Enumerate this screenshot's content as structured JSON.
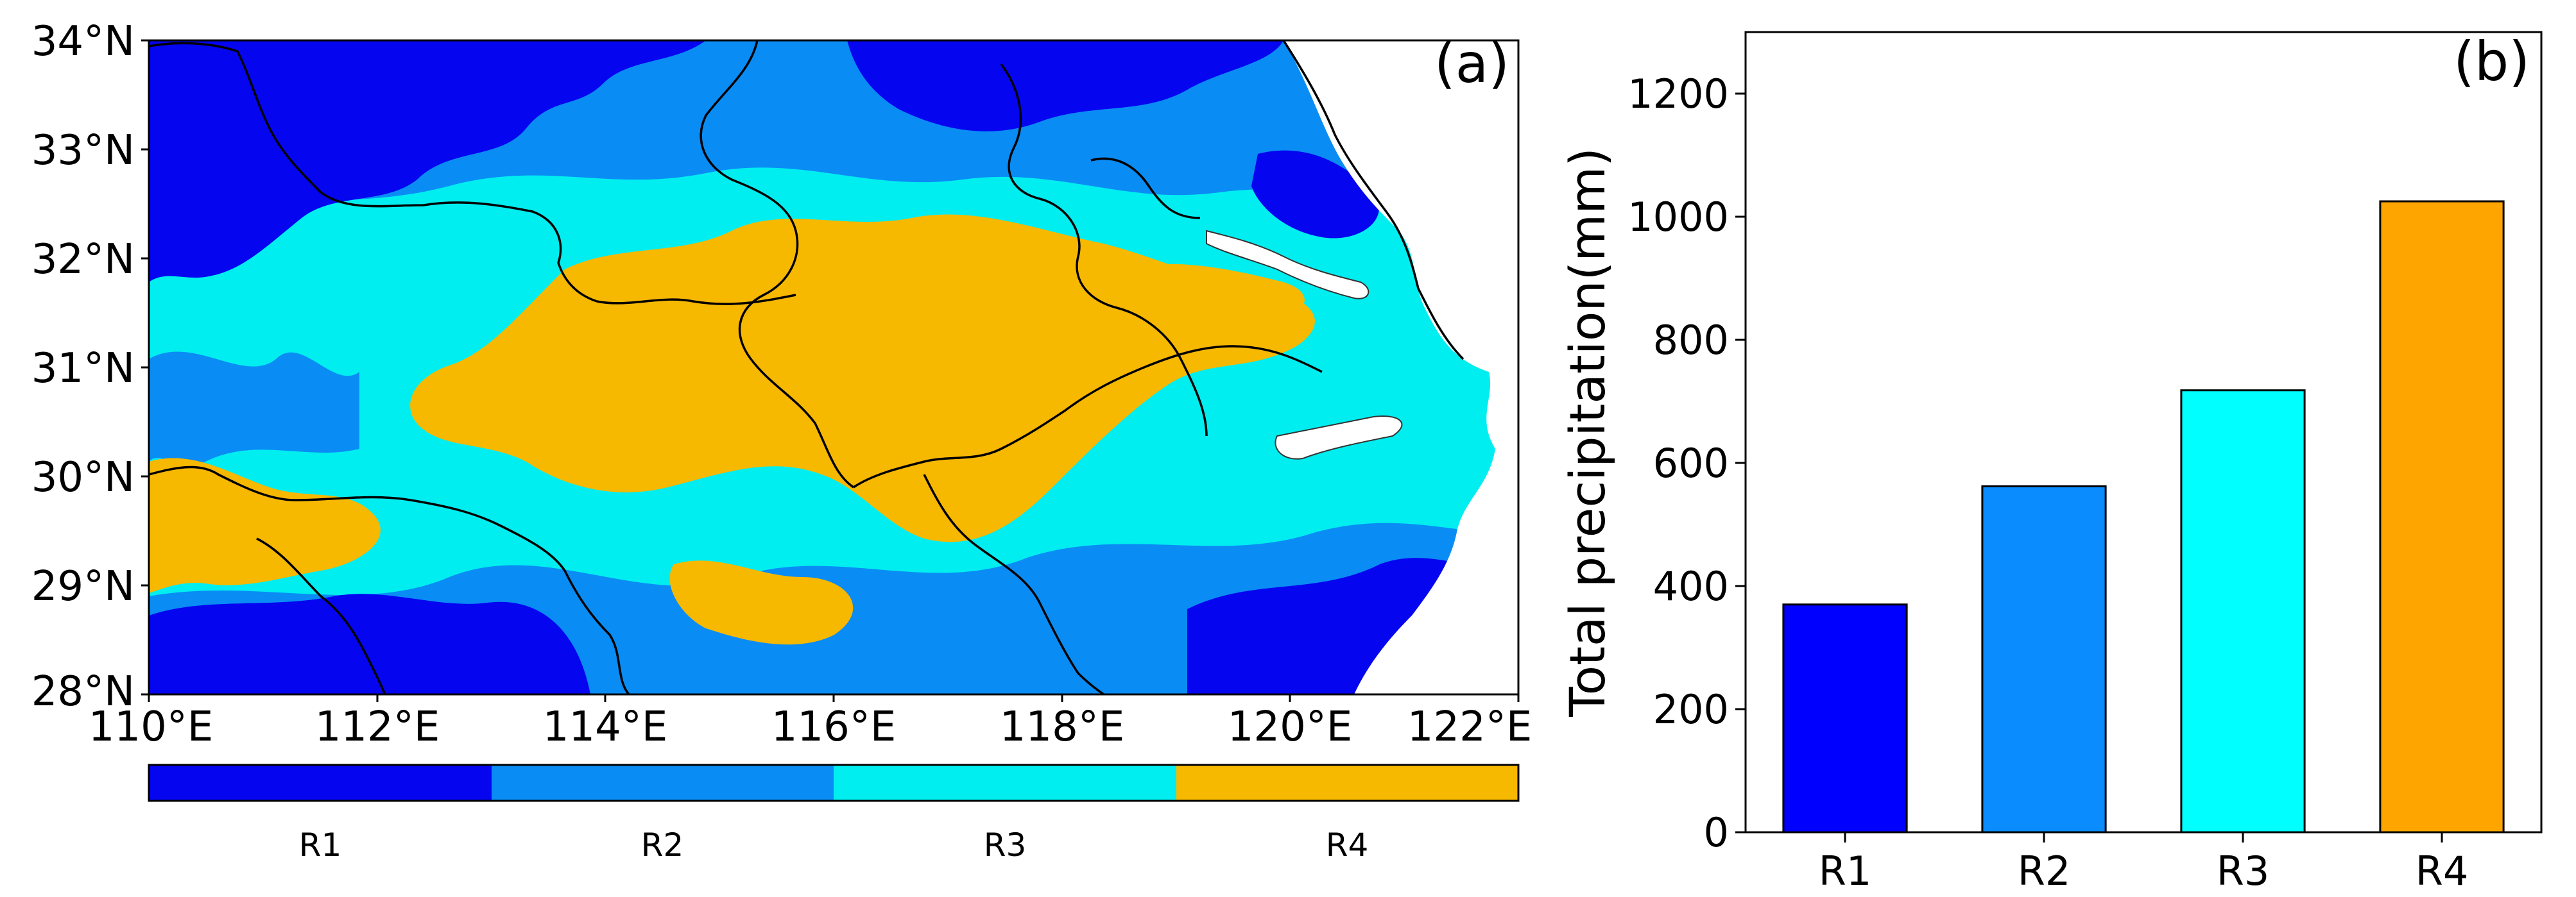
{
  "panel_a": {
    "label": "(a)",
    "lat_ticks": [
      "34°N",
      "33°N",
      "32°N",
      "31°N",
      "30°N",
      "29°N",
      "28°N"
    ],
    "lon_ticks": [
      "110°E",
      "112°E",
      "114°E",
      "116°E",
      "118°E",
      "120°E",
      "122°E"
    ],
    "lat_range": [
      28,
      34
    ],
    "lon_range": [
      110,
      122
    ],
    "colorbar": [
      {
        "label": "R1",
        "color": "#0505f0"
      },
      {
        "label": "R2",
        "color": "#0a8cf5"
      },
      {
        "label": "R3",
        "color": "#00eef0"
      },
      {
        "label": "R4",
        "color": "#f7b800"
      }
    ]
  },
  "chart_data": {
    "type": "bar",
    "panel_label": "(b)",
    "categories": [
      "R1",
      "R2",
      "R3",
      "R4"
    ],
    "values": [
      370,
      562,
      718,
      1025
    ],
    "colors": [
      "#0000ff",
      "#0a8cff",
      "#00ffff",
      "#ffa500"
    ],
    "xlabel": "",
    "ylabel": "Total precipitation(mm)",
    "ylim": [
      0,
      1300
    ],
    "yticks": [
      0,
      200,
      400,
      600,
      800,
      1000,
      1200
    ],
    "grid": false
  }
}
